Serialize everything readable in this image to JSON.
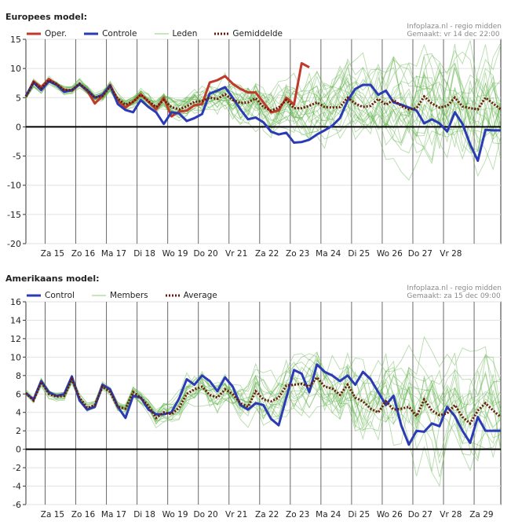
{
  "panels": [
    {
      "title": "Europees model:",
      "source_line1": "Infoplaza.nl - regio midden",
      "source_line2": "Gemaakt: vr 14 dec 22:00",
      "legend": [
        {
          "label": "Oper.",
          "color": "#c0392b",
          "style": "thick"
        },
        {
          "label": "Controle",
          "color": "#2b3bb5",
          "style": "thick"
        },
        {
          "label": "Leden",
          "color": "#8fcc7a",
          "style": "thin"
        },
        {
          "label": "Gemiddelde",
          "color": "#6b1a0a",
          "style": "dotted"
        }
      ]
    },
    {
      "title": "Amerikaans model:",
      "source_line1": "Infoplaza.nl - regio midden",
      "source_line2": "Gemaakt: za 15 dec 09:00",
      "legend": [
        {
          "label": "Control",
          "color": "#2b3bb5",
          "style": "thick"
        },
        {
          "label": "Members",
          "color": "#8fcc7a",
          "style": "thin"
        },
        {
          "label": "Average",
          "color": "#6b1a0a",
          "style": "dotted"
        }
      ]
    }
  ],
  "chart_data": [
    {
      "type": "line",
      "title": "Europees model:",
      "ylim": [
        -20,
        15
      ],
      "yticks": [
        -20,
        -15,
        -10,
        -5,
        0,
        5,
        10,
        15
      ],
      "xlim": [
        0,
        15.5
      ],
      "day_labels": [
        "Za 15",
        "Zo 16",
        "Ma 17",
        "Di 18",
        "Wo 19",
        "Do 20",
        "Vr 21",
        "Za 22",
        "Zo 23",
        "Ma 24",
        "Di 25",
        "Wo 26",
        "Do 27",
        "Vr 28"
      ],
      "series": [
        {
          "name": "Oper.",
          "color": "#c0392b",
          "x": [
            0,
            0.25,
            0.5,
            0.75,
            1,
            1.25,
            1.5,
            1.75,
            2,
            2.25,
            2.5,
            2.75,
            3,
            3.25,
            3.5,
            3.75,
            4,
            4.25,
            4.5,
            4.75,
            5,
            5.25,
            5.5,
            5.75,
            6,
            6.25,
            6.5,
            6.75,
            7,
            7.25,
            7.5,
            7.75,
            8,
            8.25,
            8.5,
            8.75,
            9,
            9.25
          ],
          "y": [
            5.2,
            7.8,
            6.8,
            8.2,
            7.3,
            6.3,
            6.2,
            7.3,
            6.2,
            4.0,
            5.3,
            7.2,
            4.5,
            3.3,
            4.3,
            5.6,
            4.3,
            3.0,
            5.0,
            1.8,
            2.6,
            2.8,
            3.7,
            3.9,
            7.6,
            8.0,
            8.7,
            7.4,
            6.5,
            5.9,
            5.9,
            4.2,
            2.5,
            2.8,
            5.0,
            3.8,
            10.9,
            10.2
          ]
        },
        {
          "name": "Controle",
          "color": "#2b3bb5",
          "x": [
            0,
            0.25,
            0.5,
            0.75,
            1,
            1.25,
            1.5,
            1.75,
            2,
            2.25,
            2.5,
            2.75,
            3,
            3.25,
            3.5,
            3.75,
            4,
            4.25,
            4.5,
            4.75,
            5,
            5.25,
            5.5,
            5.75,
            6,
            6.25,
            6.5,
            6.75,
            7,
            7.25,
            7.5,
            7.75,
            8,
            8.25,
            8.5,
            8.75,
            9,
            9.25,
            9.5,
            9.75,
            10,
            10.25,
            10.5,
            10.75,
            11,
            11.25,
            11.5,
            11.75,
            12,
            12.25,
            12.5,
            12.75,
            13,
            13.25,
            13.5,
            13.75,
            14,
            14.25,
            14.5,
            14.75,
            15,
            15.25,
            15.5
          ],
          "y": [
            5.3,
            7.6,
            6.3,
            7.8,
            7.2,
            6.0,
            6.3,
            7.3,
            6.3,
            5.0,
            5.5,
            7.1,
            3.9,
            2.9,
            2.5,
            4.6,
            3.4,
            2.5,
            0.5,
            2.5,
            2.3,
            1.0,
            1.5,
            2.2,
            5.7,
            6.2,
            6.8,
            5.0,
            3.0,
            1.3,
            1.6,
            0.8,
            -0.8,
            -1.3,
            -1.0,
            -2.7,
            -2.6,
            -2.2,
            -1.3,
            -0.6,
            0.2,
            1.5,
            4.5,
            6.5,
            7.2,
            7.2,
            5.5,
            6.2,
            4.2,
            3.8,
            3.3,
            2.8,
            0.6,
            1.3,
            0.6,
            -0.8,
            2.5,
            0.5,
            -3.0,
            -5.8,
            -0.5,
            -0.6,
            -0.6
          ]
        },
        {
          "name": "Gemiddelde",
          "color": "#6b1a0a",
          "x": [
            0,
            0.25,
            0.5,
            0.75,
            1,
            1.25,
            1.5,
            1.75,
            2,
            2.25,
            2.5,
            2.75,
            3,
            3.25,
            3.5,
            3.75,
            4,
            4.25,
            4.5,
            4.75,
            5,
            5.25,
            5.5,
            5.75,
            6,
            6.25,
            6.5,
            6.75,
            7,
            7.25,
            7.5,
            7.75,
            8,
            8.25,
            8.5,
            8.75,
            9,
            9.25,
            9.5,
            9.75,
            10,
            10.25,
            10.5,
            10.75,
            11,
            11.25,
            11.5,
            11.75,
            12,
            12.25,
            12.5,
            12.75,
            13,
            13.25,
            13.5,
            13.75,
            14,
            14.25,
            14.5,
            14.75,
            15,
            15.25,
            15.5
          ],
          "y": [
            5.2,
            7.6,
            6.6,
            8.0,
            7.3,
            6.3,
            6.3,
            7.4,
            6.3,
            5.0,
            5.3,
            6.9,
            4.8,
            3.8,
            4.3,
            5.5,
            4.4,
            3.4,
            4.6,
            3.4,
            3.0,
            3.5,
            4.3,
            4.4,
            5.0,
            4.8,
            5.6,
            4.6,
            4.1,
            4.2,
            4.9,
            3.4,
            2.8,
            3.3,
            4.6,
            3.2,
            3.2,
            3.6,
            4.2,
            3.4,
            3.3,
            3.4,
            5.0,
            4.0,
            3.4,
            3.6,
            4.8,
            3.8,
            4.6,
            3.6,
            3.0,
            3.2,
            5.2,
            4.0,
            3.3,
            3.6,
            5.0,
            3.5,
            3.2,
            3.0,
            5.0,
            4.0,
            3.0
          ]
        }
      ]
    },
    {
      "type": "line",
      "title": "Amerikaans model:",
      "ylim": [
        -6,
        16
      ],
      "yticks": [
        -6,
        -4,
        -2,
        0,
        2,
        4,
        6,
        8,
        10,
        12,
        14,
        16
      ],
      "xlim": [
        0,
        15.5
      ],
      "day_labels": [
        "Za 15",
        "Zo 16",
        "Ma 17",
        "Di 18",
        "Wo 19",
        "Do 20",
        "Vr 21",
        "Za 22",
        "Zo 23",
        "Ma 24",
        "Di 25",
        "Wo 26",
        "Do 27",
        "Vr 28",
        "Za 29"
      ],
      "series": [
        {
          "name": "Control",
          "color": "#2b3bb5",
          "x": [
            0,
            0.25,
            0.5,
            0.75,
            1,
            1.25,
            1.5,
            1.75,
            2,
            2.25,
            2.5,
            2.75,
            3,
            3.25,
            3.5,
            3.75,
            4,
            4.25,
            4.5,
            4.75,
            5,
            5.25,
            5.5,
            5.75,
            6,
            6.25,
            6.5,
            6.75,
            7,
            7.25,
            7.5,
            7.75,
            8,
            8.25,
            8.5,
            8.75,
            9,
            9.25,
            9.5,
            9.75,
            10,
            10.25,
            10.5,
            10.75,
            11,
            11.25,
            11.5,
            11.75,
            12,
            12.25,
            12.5,
            12.75,
            13,
            13.25,
            13.5,
            13.75,
            14,
            14.25,
            14.5,
            14.75,
            15,
            15.25,
            15.5
          ],
          "y": [
            6.1,
            5.4,
            7.4,
            6.2,
            5.8,
            6.0,
            7.9,
            5.3,
            4.3,
            4.6,
            7.0,
            6.5,
            4.6,
            3.4,
            5.8,
            5.6,
            4.3,
            3.8,
            3.8,
            4.0,
            5.5,
            7.6,
            7.0,
            8.0,
            7.4,
            6.3,
            7.8,
            6.8,
            4.8,
            4.3,
            5.0,
            4.8,
            3.3,
            2.6,
            5.6,
            8.6,
            8.2,
            6.2,
            9.2,
            8.4,
            8.0,
            7.4,
            8.0,
            7.0,
            8.4,
            7.6,
            6.2,
            4.8,
            5.8,
            2.6,
            0.5,
            2.0,
            1.9,
            2.8,
            2.5,
            4.6,
            3.6,
            2.0,
            0.7,
            3.5,
            2.0,
            2.0,
            2.0
          ]
        },
        {
          "name": "Average",
          "color": "#6b1a0a",
          "x": [
            0,
            0.25,
            0.5,
            0.75,
            1,
            1.25,
            1.5,
            1.75,
            2,
            2.25,
            2.5,
            2.75,
            3,
            3.25,
            3.5,
            3.75,
            4,
            4.25,
            4.5,
            4.75,
            5,
            5.25,
            5.5,
            5.75,
            6,
            6.25,
            6.5,
            6.75,
            7,
            7.25,
            7.5,
            7.75,
            8,
            8.25,
            8.5,
            8.75,
            9,
            9.25,
            9.5,
            9.75,
            10,
            10.25,
            10.5,
            10.75,
            11,
            11.25,
            11.5,
            11.75,
            12,
            12.25,
            12.5,
            12.75,
            13,
            13.25,
            13.5,
            13.75,
            14,
            14.25,
            14.5,
            14.75,
            15,
            15.25,
            15.5
          ],
          "y": [
            6.1,
            5.3,
            7.3,
            6.0,
            5.7,
            5.8,
            7.6,
            5.6,
            4.5,
            4.8,
            6.8,
            6.2,
            4.6,
            4.4,
            6.2,
            5.6,
            4.7,
            3.4,
            4.0,
            3.8,
            4.5,
            6.0,
            6.5,
            6.8,
            5.9,
            5.6,
            6.5,
            6.0,
            5.0,
            4.6,
            6.3,
            5.4,
            5.2,
            5.6,
            6.9,
            7.0,
            7.1,
            6.8,
            7.8,
            6.8,
            6.6,
            5.9,
            7.0,
            5.6,
            5.2,
            4.4,
            4.0,
            5.2,
            4.3,
            4.4,
            4.6,
            3.6,
            5.4,
            4.2,
            3.7,
            3.9,
            4.8,
            3.5,
            2.8,
            4.2,
            5.0,
            4.2,
            3.5
          ]
        }
      ]
    }
  ]
}
